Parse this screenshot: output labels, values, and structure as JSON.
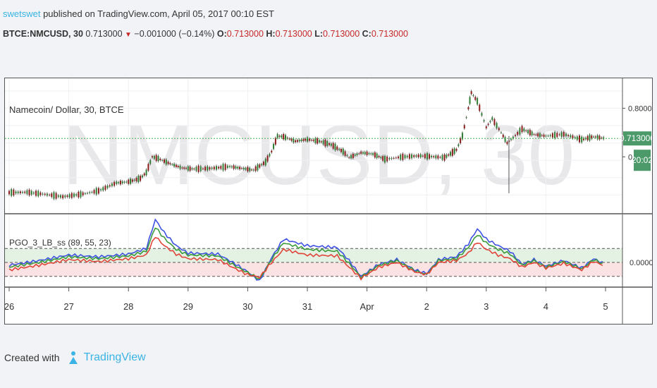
{
  "header": {
    "author": "swetswet",
    "published_text": " published on TradingView.com, April 05, 2017 00:10 EST",
    "symbol": "BTCE:NMCUSD, 30",
    "last": "0.713000",
    "change": "−0.001000 (−0.14%)",
    "o_label": "O:",
    "o": "0.713000",
    "h_label": "H:",
    "h": "0.713000",
    "l_label": "L:",
    "l": "0.713000",
    "c_label": "C:",
    "c": "0.713000"
  },
  "footer": {
    "created_with": "Created with",
    "brand": "TradingView"
  },
  "colors": {
    "up": "#2e7d32",
    "down": "#8b1a1a",
    "price_line": "#4caf50",
    "author": "#3bb3e4",
    "pgo_blue": "#3f51e0",
    "pgo_green": "#3a9a3a",
    "pgo_red": "#e0453a"
  },
  "chart_data": [
    {
      "type": "line",
      "title": "Namecoin/ Dollar, 30, BTCE",
      "watermark": "NMCUSD, 30",
      "x": [
        26,
        27,
        28,
        29,
        30,
        31,
        "Apr",
        2,
        3,
        4,
        5
      ],
      "x_tick_labels": [
        "26",
        "27",
        "28",
        "29",
        "30",
        "31",
        "Apr",
        "2",
        "3",
        "4",
        "5"
      ],
      "ylim": [
        0.5,
        0.87
      ],
      "y_tick_labels": [
        "0.800000",
        "0.6"
      ],
      "last_price_label": "0.713000",
      "countdown_label": "20:02",
      "last_price": 0.713,
      "series": [
        {
          "values": [
            [
              26.0,
              0.557
            ],
            [
              26.3,
              0.558
            ],
            [
              26.6,
              0.552
            ],
            [
              26.9,
              0.545
            ],
            [
              27.2,
              0.552
            ],
            [
              27.5,
              0.562
            ],
            [
              27.8,
              0.585
            ],
            [
              28.0,
              0.588
            ],
            [
              28.2,
              0.598
            ],
            [
              28.3,
              0.615
            ],
            [
              28.4,
              0.66
            ],
            [
              28.5,
              0.655
            ],
            [
              28.7,
              0.64
            ],
            [
              28.9,
              0.628
            ],
            [
              29.1,
              0.625
            ],
            [
              29.4,
              0.627
            ],
            [
              29.7,
              0.632
            ],
            [
              29.9,
              0.627
            ],
            [
              30.1,
              0.622
            ],
            [
              30.3,
              0.645
            ],
            [
              30.4,
              0.675
            ],
            [
              30.5,
              0.72
            ],
            [
              30.6,
              0.718
            ],
            [
              30.8,
              0.705
            ],
            [
              31.0,
              0.71
            ],
            [
              31.2,
              0.705
            ],
            [
              31.4,
              0.695
            ],
            [
              31.6,
              0.675
            ],
            [
              31.7,
              0.658
            ],
            [
              31.9,
              0.672
            ],
            [
              32.1,
              0.668
            ],
            [
              32.3,
              0.653
            ],
            [
              32.6,
              0.66
            ],
            [
              32.9,
              0.663
            ],
            [
              33.3,
              0.658
            ],
            [
              33.5,
              0.68
            ],
            [
              33.6,
              0.72
            ],
            [
              33.7,
              0.8
            ],
            [
              33.75,
              0.845
            ],
            [
              33.85,
              0.82
            ],
            [
              34.0,
              0.745
            ],
            [
              34.1,
              0.77
            ],
            [
              34.25,
              0.73
            ],
            [
              34.35,
              0.7
            ],
            [
              34.45,
              0.715
            ],
            [
              34.6,
              0.74
            ],
            [
              34.8,
              0.725
            ],
            [
              35.0,
              0.72
            ],
            [
              35.3,
              0.725
            ],
            [
              35.6,
              0.71
            ],
            [
              35.8,
              0.718
            ],
            [
              36.0,
              0.713
            ]
          ]
        }
      ]
    },
    {
      "type": "line",
      "title": "PGO_3_LB_ss (89, 55, 23)",
      "ylim": [
        -2.5,
        5
      ],
      "y_tick_labels": [
        "0.0000"
      ],
      "reference_levels": [
        1.5,
        0,
        -1.5
      ],
      "series": [
        {
          "name": "PGO 89",
          "values": [
            [
              26.0,
              -0.3
            ],
            [
              26.5,
              0.2
            ],
            [
              27.0,
              0.8
            ],
            [
              27.5,
              0.6
            ],
            [
              28.0,
              0.9
            ],
            [
              28.3,
              1.5
            ],
            [
              28.45,
              4.6
            ],
            [
              28.6,
              3.2
            ],
            [
              28.8,
              1.8
            ],
            [
              29.0,
              1.0
            ],
            [
              29.5,
              0.9
            ],
            [
              29.8,
              -0.2
            ],
            [
              30.0,
              -1.0
            ],
            [
              30.2,
              -2.0
            ],
            [
              30.4,
              0.5
            ],
            [
              30.6,
              2.5
            ],
            [
              31.0,
              1.8
            ],
            [
              31.5,
              1.6
            ],
            [
              31.7,
              0.2
            ],
            [
              31.9,
              -1.5
            ],
            [
              32.2,
              -0.2
            ],
            [
              32.5,
              0.3
            ],
            [
              32.8,
              -0.8
            ],
            [
              33.0,
              -1.2
            ],
            [
              33.2,
              0.3
            ],
            [
              33.5,
              0.6
            ],
            [
              33.7,
              2.0
            ],
            [
              33.85,
              3.6
            ],
            [
              34.0,
              2.5
            ],
            [
              34.2,
              1.8
            ],
            [
              34.4,
              1.2
            ],
            [
              34.6,
              -0.2
            ],
            [
              34.8,
              0.3
            ],
            [
              35.0,
              -0.4
            ],
            [
              35.3,
              0.2
            ],
            [
              35.6,
              -0.6
            ],
            [
              35.8,
              0.4
            ],
            [
              36.0,
              -0.2
            ]
          ]
        },
        {
          "name": "PGO 55",
          "values": [
            [
              26.0,
              -0.5
            ],
            [
              26.5,
              0.0
            ],
            [
              27.0,
              0.6
            ],
            [
              27.5,
              0.4
            ],
            [
              28.0,
              0.7
            ],
            [
              28.3,
              1.2
            ],
            [
              28.45,
              3.8
            ],
            [
              28.6,
              2.6
            ],
            [
              28.8,
              1.4
            ],
            [
              29.0,
              0.8
            ],
            [
              29.5,
              0.7
            ],
            [
              29.8,
              -0.4
            ],
            [
              30.0,
              -1.1
            ],
            [
              30.2,
              -1.8
            ],
            [
              30.4,
              0.3
            ],
            [
              30.6,
              2.1
            ],
            [
              31.0,
              1.4
            ],
            [
              31.5,
              1.2
            ],
            [
              31.7,
              -0.1
            ],
            [
              31.9,
              -1.6
            ],
            [
              32.2,
              -0.3
            ],
            [
              32.5,
              0.2
            ],
            [
              32.8,
              -0.9
            ],
            [
              33.0,
              -1.3
            ],
            [
              33.2,
              0.2
            ],
            [
              33.5,
              0.4
            ],
            [
              33.7,
              1.6
            ],
            [
              33.85,
              3.0
            ],
            [
              34.0,
              2.1
            ],
            [
              34.2,
              1.4
            ],
            [
              34.4,
              0.9
            ],
            [
              34.6,
              -0.3
            ],
            [
              34.8,
              0.2
            ],
            [
              35.0,
              -0.5
            ],
            [
              35.3,
              0.1
            ],
            [
              35.6,
              -0.7
            ],
            [
              35.8,
              0.3
            ],
            [
              36.0,
              -0.3
            ]
          ]
        },
        {
          "name": "PGO 23",
          "values": [
            [
              26.0,
              -0.8
            ],
            [
              26.5,
              -0.3
            ],
            [
              27.0,
              0.3
            ],
            [
              27.5,
              0.1
            ],
            [
              28.0,
              0.4
            ],
            [
              28.3,
              0.8
            ],
            [
              28.45,
              2.8
            ],
            [
              28.6,
              1.8
            ],
            [
              28.8,
              0.9
            ],
            [
              29.0,
              0.4
            ],
            [
              29.5,
              0.3
            ],
            [
              29.8,
              -0.7
            ],
            [
              30.0,
              -1.3
            ],
            [
              30.2,
              -1.6
            ],
            [
              30.4,
              0.0
            ],
            [
              30.6,
              1.4
            ],
            [
              31.0,
              0.8
            ],
            [
              31.5,
              0.7
            ],
            [
              31.7,
              -0.5
            ],
            [
              31.9,
              -1.7
            ],
            [
              32.2,
              -0.5
            ],
            [
              32.5,
              0.0
            ],
            [
              32.8,
              -1.0
            ],
            [
              33.0,
              -1.3
            ],
            [
              33.2,
              0.0
            ],
            [
              33.5,
              0.2
            ],
            [
              33.7,
              1.0
            ],
            [
              33.85,
              2.2
            ],
            [
              34.0,
              1.4
            ],
            [
              34.2,
              0.8
            ],
            [
              34.4,
              0.4
            ],
            [
              34.6,
              -0.5
            ],
            [
              34.8,
              0.0
            ],
            [
              35.0,
              -0.6
            ],
            [
              35.3,
              -0.1
            ],
            [
              35.6,
              -0.8
            ],
            [
              35.8,
              0.1
            ],
            [
              36.0,
              -0.4
            ]
          ]
        }
      ]
    }
  ]
}
